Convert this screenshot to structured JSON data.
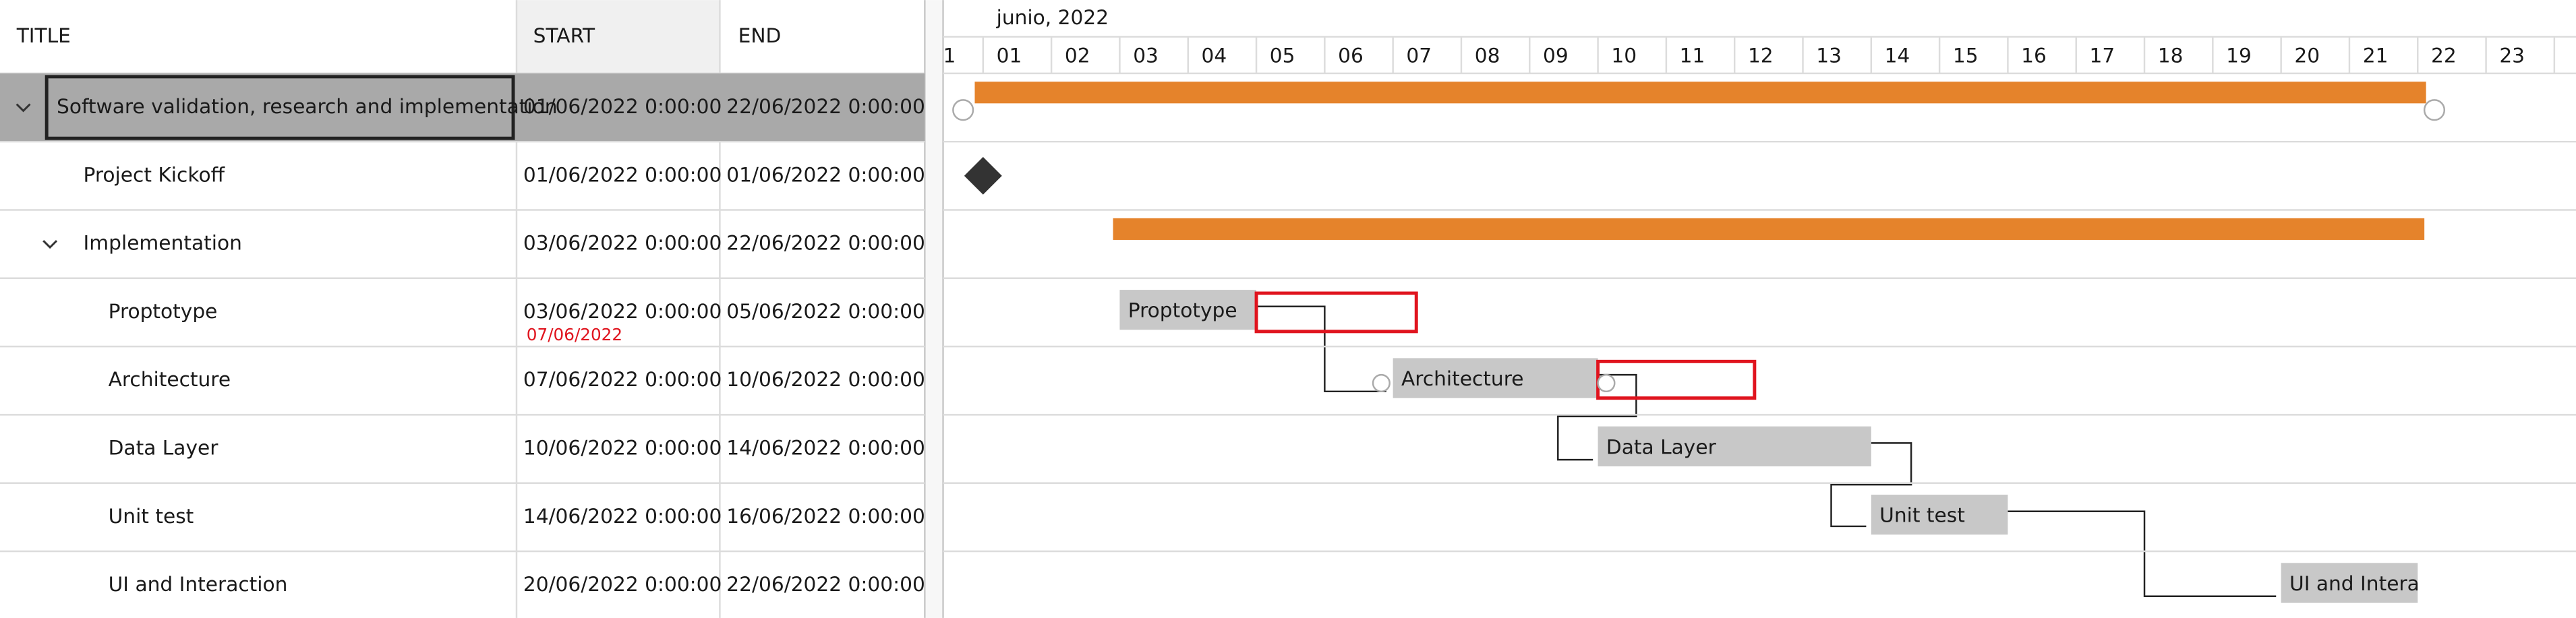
{
  "columns": [
    "TITLE",
    "START",
    "END"
  ],
  "timeline": {
    "month": "junio, 2022",
    "days": [
      "1",
      "01",
      "02",
      "03",
      "04",
      "05",
      "06",
      "07",
      "08",
      "09",
      "10",
      "11",
      "12",
      "13",
      "14",
      "15",
      "16",
      "17",
      "18",
      "19",
      "20",
      "21",
      "22",
      "23"
    ]
  },
  "rows": [
    {
      "title": "Software validation, research and implementation",
      "start": "01/06/2022 0:00:00",
      "end": "22/06/2022 0:00:00",
      "level": 0,
      "kind": "summary",
      "selected": true
    },
    {
      "title": "Project Kickoff",
      "start": "01/06/2022 0:00:00",
      "end": "01/06/2022 0:00:00",
      "level": 1,
      "kind": "milestone"
    },
    {
      "title": "Implementation",
      "start": "03/06/2022 0:00:00",
      "end": "22/06/2022 0:00:00",
      "level": 1,
      "kind": "summary"
    },
    {
      "title": "Proptotype",
      "start": "03/06/2022 0:00:00",
      "end": "05/06/2022 0:00:00",
      "level": 2,
      "kind": "task",
      "warning": "07/06/2022"
    },
    {
      "title": "Architecture",
      "start": "07/06/2022 0:00:00",
      "end": "10/06/2022 0:00:00",
      "level": 2,
      "kind": "task"
    },
    {
      "title": "Data Layer",
      "start": "10/06/2022 0:00:00",
      "end": "14/06/2022 0:00:00",
      "level": 2,
      "kind": "task"
    },
    {
      "title": "Unit test",
      "start": "14/06/2022 0:00:00",
      "end": "16/06/2022 0:00:00",
      "level": 2,
      "kind": "task"
    },
    {
      "title": "UI and Interaction",
      "start": "20/06/2022 0:00:00",
      "end": "22/06/2022 0:00:00",
      "level": 2,
      "kind": "task"
    }
  ]
}
